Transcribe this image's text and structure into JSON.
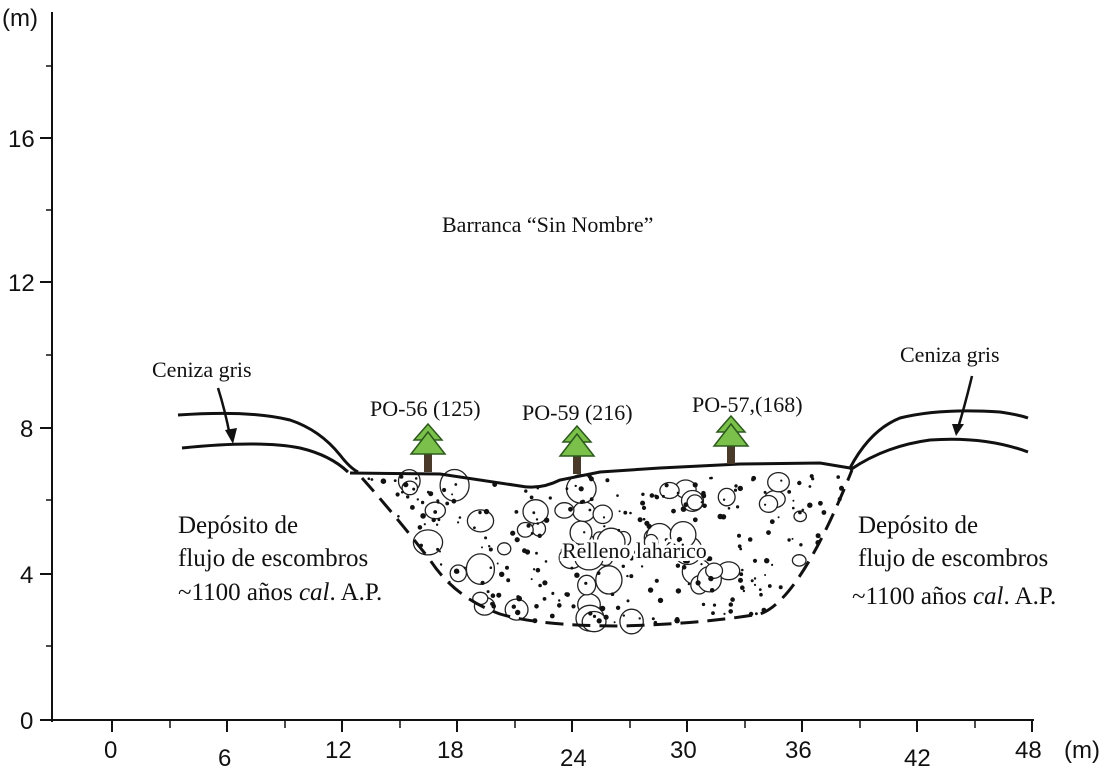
{
  "y_axis": {
    "unit": "(m)",
    "ticks": [
      "0",
      "4",
      "8",
      "12",
      "16"
    ]
  },
  "x_axis": {
    "unit": "(m)",
    "ticks": [
      "0",
      "6",
      "12",
      "18",
      "24",
      "30",
      "36",
      "42",
      "48"
    ]
  },
  "title": "Barranca “Sin Nombre”",
  "labels": {
    "ash_left": "Ceniza gris",
    "ash_right": "Ceniza gris",
    "fill": "Relleno lahárico",
    "deposit_left": [
      "Depósito de",
      "flujo de escombros",
      "~1100 años"
    ],
    "deposit_right": [
      "Depósito de",
      "flujo de escombros",
      "~1100 años"
    ],
    "cal": "cal",
    "ap": ". A.P."
  },
  "samples": [
    {
      "id": "PO-56 (125)",
      "icon": "tree-icon"
    },
    {
      "id": "PO-59 (216)",
      "icon": "tree-icon"
    },
    {
      "id": "PO-57,(168)",
      "icon": "tree-icon"
    }
  ],
  "colors": {
    "tree": "#7ac04b",
    "trunk": "#4a3a2a",
    "line": "#111111"
  }
}
